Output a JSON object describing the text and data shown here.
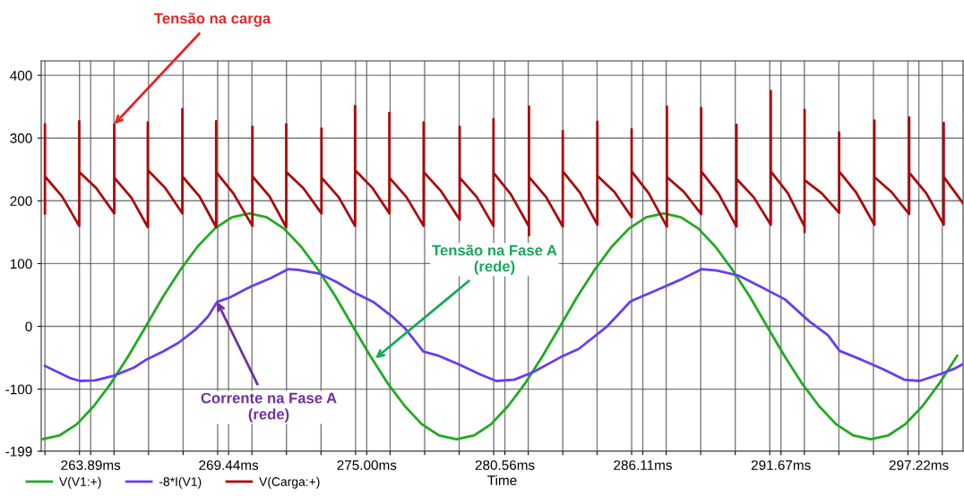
{
  "chart_data": {
    "type": "line",
    "xlabel": "Time",
    "xlim": [
      261.9,
      299.0
    ],
    "ylim": [
      -199,
      423
    ],
    "xticks": [
      {
        "value": 263.89,
        "label": "263.89ms"
      },
      {
        "value": 269.44,
        "label": "269.44ms"
      },
      {
        "value": 275.0,
        "label": "275.00ms"
      },
      {
        "value": 280.56,
        "label": "280.56ms"
      },
      {
        "value": 286.11,
        "label": "286.11ms"
      },
      {
        "value": 291.67,
        "label": "291.67ms"
      },
      {
        "value": 297.22,
        "label": "297.22ms"
      },
      {
        "value": 262.05,
        "label": null
      },
      {
        "value": 263.44,
        "label": null
      },
      {
        "value": 264.83,
        "label": null
      },
      {
        "value": 266.22,
        "label": null
      },
      {
        "value": 267.61,
        "label": null
      },
      {
        "value": 269.0,
        "label": null
      },
      {
        "value": 270.38,
        "label": null
      },
      {
        "value": 271.77,
        "label": null
      },
      {
        "value": 273.16,
        "label": null
      },
      {
        "value": 274.55,
        "label": null
      },
      {
        "value": 275.94,
        "label": null
      },
      {
        "value": 277.33,
        "label": null
      },
      {
        "value": 278.72,
        "label": null
      },
      {
        "value": 280.11,
        "label": null
      },
      {
        "value": 281.5,
        "label": null
      },
      {
        "value": 282.89,
        "label": null
      },
      {
        "value": 284.27,
        "label": null
      },
      {
        "value": 285.66,
        "label": null
      },
      {
        "value": 287.05,
        "label": null
      },
      {
        "value": 288.44,
        "label": null
      },
      {
        "value": 289.83,
        "label": null
      },
      {
        "value": 291.22,
        "label": null
      },
      {
        "value": 292.61,
        "label": null
      },
      {
        "value": 294.0,
        "label": null
      },
      {
        "value": 295.39,
        "label": null
      },
      {
        "value": 296.78,
        "label": null
      },
      {
        "value": 298.16,
        "label": null
      }
    ],
    "yticks": [
      -199,
      -100,
      0,
      100,
      200,
      300,
      400
    ],
    "grid": true,
    "legend": "bottom left",
    "series": [
      {
        "name": "V(V1:+)",
        "color": "#22aa22",
        "x": [
          261.94,
          262.63,
          263.33,
          264.02,
          264.72,
          265.41,
          266.11,
          266.8,
          267.5,
          268.19,
          268.89,
          269.58,
          270.28,
          270.97,
          271.66,
          272.36,
          273.05,
          273.75,
          274.44,
          275.14,
          275.83,
          276.53,
          277.22,
          277.92,
          278.61,
          279.31,
          280.0,
          280.69,
          281.39,
          282.08,
          282.78,
          283.47,
          284.17,
          284.86,
          285.56,
          286.25,
          286.95,
          287.64,
          288.34,
          289.03,
          289.72,
          290.42,
          291.11,
          291.81,
          292.5,
          293.2,
          293.89,
          294.59,
          295.28,
          295.98,
          296.67,
          297.37,
          298.06,
          298.76
        ],
        "values": [
          -180,
          -174,
          -156,
          -127,
          -90,
          -47,
          0,
          47,
          90,
          127,
          156,
          174,
          180,
          174,
          156,
          127,
          90,
          47,
          0,
          -47,
          -90,
          -127,
          -156,
          -174,
          -180,
          -174,
          -156,
          -127,
          -90,
          -47,
          0,
          47,
          90,
          127,
          156,
          174,
          180,
          174,
          156,
          127,
          90,
          47,
          0,
          -47,
          -90,
          -127,
          -156,
          -174,
          -180,
          -174,
          -156,
          -127,
          -90,
          -47
        ]
      },
      {
        "name": "-8*I(V1)",
        "color": "#6a3cf0",
        "x": [
          262.05,
          263.1,
          263.46,
          264.07,
          264.79,
          265.62,
          266.09,
          266.81,
          267.43,
          268.15,
          268.62,
          268.98,
          269.49,
          270.32,
          271.15,
          271.83,
          272.23,
          273.1,
          273.82,
          274.54,
          275.26,
          275.98,
          276.56,
          277.28,
          277.9,
          278.73,
          279.59,
          280.21,
          280.93,
          281.69,
          282.81,
          283.53,
          284.65,
          285.62,
          286.63,
          287.61,
          288.47,
          289.09,
          289.96,
          290.82,
          291.83,
          292.81,
          293.56,
          294.03,
          294.9,
          295.77,
          296.63,
          297.25,
          298.01,
          298.62,
          299.0
        ],
        "values": [
          -63,
          -83,
          -87,
          -86,
          -79,
          -66,
          -54,
          -40,
          -26,
          -4,
          16,
          39,
          46,
          63,
          77,
          91,
          90,
          84,
          70,
          53,
          39,
          17,
          -4,
          -40,
          -47,
          -61,
          -77,
          -87,
          -85,
          -73,
          -49,
          -36,
          -1,
          40,
          57,
          74,
          91,
          89,
          81,
          64,
          43,
          8,
          -14,
          -39,
          -53,
          -68,
          -85,
          -87,
          -77,
          -68,
          -60
        ]
      },
      {
        "name": "V(Carga:+)",
        "color": "#aa0a0a",
        "x": [
          262.05,
          262.05,
          262.05,
          262.74,
          263.43,
          263.43,
          263.43,
          264.12,
          264.84,
          264.84,
          264.84,
          265.53,
          266.19,
          266.19,
          266.19,
          266.88,
          267.58,
          267.58,
          267.58,
          268.27,
          268.94,
          268.94,
          268.94,
          269.63,
          270.4,
          270.4,
          270.4,
          271.09,
          271.76,
          271.76,
          271.76,
          272.45,
          273.18,
          273.18,
          273.18,
          273.87,
          274.53,
          274.53,
          274.53,
          275.22,
          275.91,
          275.91,
          275.91,
          276.6,
          277.29,
          277.29,
          277.29,
          277.98,
          278.74,
          278.74,
          278.74,
          279.43,
          280.1,
          280.1,
          280.1,
          280.79,
          281.53,
          281.53,
          281.53,
          281.53,
          282.22,
          282.89,
          282.89,
          282.89,
          283.58,
          284.28,
          284.28,
          284.28,
          284.97,
          285.66,
          285.66,
          285.66,
          286.35,
          287.08,
          287.08,
          287.08,
          287.77,
          288.46,
          288.46,
          288.46,
          289.15,
          289.88,
          289.88,
          289.88,
          290.57,
          291.26,
          291.26,
          291.26,
          291.95,
          292.62,
          292.62,
          292.62,
          292.62,
          293.31,
          294.01,
          294.01,
          294.01,
          294.7,
          295.43,
          295.43,
          295.43,
          296.12,
          296.83,
          296.83,
          296.83,
          297.52,
          298.22,
          298.22,
          298.22,
          299.0
        ],
        "values": [
          180,
          322,
          239,
          207,
          160,
          327,
          246,
          220,
          180,
          322,
          237,
          205,
          158,
          325,
          249,
          221,
          180,
          346,
          239,
          207,
          158,
          327,
          246,
          212,
          160,
          318,
          239,
          207,
          158,
          322,
          246,
          220,
          180,
          315,
          237,
          206,
          160,
          351,
          249,
          221,
          180,
          340,
          237,
          206,
          160,
          325,
          246,
          216,
          170,
          318,
          237,
          206,
          160,
          330,
          245,
          211,
          159,
          350,
          145,
          238,
          206,
          159,
          311,
          247,
          213,
          162,
          326,
          240,
          214,
          174,
          314,
          247,
          212,
          159,
          350,
          238,
          214,
          179,
          348,
          247,
          212,
          159,
          321,
          235,
          206,
          162,
          375,
          247,
          212,
          159,
          345,
          150,
          233,
          212,
          181,
          309,
          247,
          213,
          162,
          328,
          238,
          214,
          179,
          333,
          245,
          212,
          162,
          324,
          238,
          196
        ]
      }
    ],
    "annotations": [
      {
        "text": "Tensão na carga",
        "x": 264.84,
        "y": 322
      },
      {
        "text": "Tensão na Fase A\n(rede)",
        "x": 275.35,
        "y": -51
      },
      {
        "text": "Corrente na Fase A\n(rede)",
        "x": 268.98,
        "y": 39
      }
    ]
  }
}
